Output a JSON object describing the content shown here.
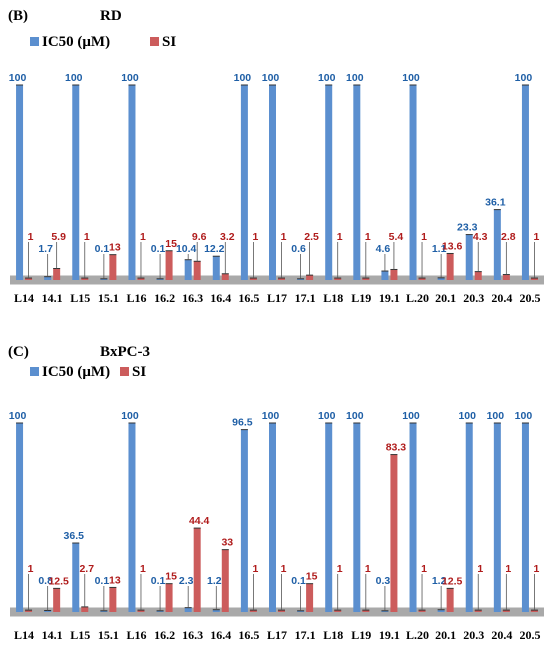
{
  "colors": {
    "ic50": "#5b8fcf",
    "si": "#cc5c5c",
    "ic50_text": "#1f5fa6",
    "si_text": "#b01c1c",
    "floor": "#a9a9a9"
  },
  "legend": {
    "ic50": "IC50  (μM)",
    "si": "SI"
  },
  "chart_data": [
    {
      "type": "bar",
      "panel": "(B)",
      "title": "RD",
      "categories": [
        "L14",
        "14.1",
        "L15",
        "15.1",
        "L16",
        "16.2",
        "16.3",
        "16.4",
        "16.5",
        "L17",
        "17.1",
        "L18",
        "L19",
        "19.1",
        "L.20",
        "20.1",
        "20.3",
        "20.4",
        "20.5"
      ],
      "series": [
        {
          "name": "IC50  (μM)",
          "values": [
            100,
            1.7,
            100,
            0.1,
            100,
            0.1,
            10.4,
            12.2,
            100,
            100,
            0.6,
            100,
            100,
            4.6,
            100,
            1.1,
            23.3,
            36.1,
            100
          ],
          "labels": [
            "100",
            "1.7",
            "100",
            "0.1",
            "100",
            "0.1",
            "10.4",
            "12.2",
            "100",
            "100",
            "0.6",
            "100",
            "100",
            "4.6",
            "100",
            "1.1",
            "23.3",
            "36.1",
            "100"
          ]
        },
        {
          "name": "SI",
          "values": [
            1,
            5.9,
            1,
            13,
            1,
            15,
            9.6,
            3.2,
            1,
            1,
            2.5,
            1,
            1,
            5.4,
            1,
            13.6,
            4.3,
            2.8,
            1
          ],
          "labels": [
            "1",
            "5.9",
            "1",
            "13",
            "1",
            "15",
            "9.6",
            "3.2",
            "1",
            "1",
            "2.5",
            "1",
            "1",
            "5.4",
            "1",
            "13.6",
            "4.3",
            "2.8",
            "1"
          ]
        }
      ],
      "ylim": [
        0,
        100
      ]
    },
    {
      "type": "bar",
      "panel": "(C)",
      "title": "BxPC-3",
      "categories": [
        "L14",
        "14.1",
        "L15",
        "15.1",
        "L16",
        "16.2",
        "16.3",
        "16.4",
        "16.5",
        "L17",
        "17.1",
        "L18",
        "L19",
        "19.1",
        "L.20",
        "20.1",
        "20.3",
        "20.4",
        "20.5"
      ],
      "series": [
        {
          "name": "IC50  (μM)",
          "values": [
            100,
            0.8,
            36.5,
            0.1,
            100,
            0.1,
            2.3,
            1.2,
            96.5,
            100,
            0.1,
            100,
            100,
            0.3,
            100,
            1.2,
            100,
            100,
            100
          ],
          "labels": [
            "100",
            "0.8",
            "36.5",
            "0.1",
            "100",
            "0.1",
            "2.3",
            "1.2",
            "96.5",
            "100",
            "0.1",
            "100",
            "100",
            "0.3",
            "100",
            "1.2",
            "100",
            "100",
            "100"
          ]
        },
        {
          "name": "SI",
          "values": [
            1,
            12.5,
            2.7,
            13,
            1,
            15,
            44.4,
            33,
            1,
            1,
            15,
            1,
            1,
            83.3,
            1,
            12.5,
            1,
            1,
            1
          ],
          "labels": [
            "1",
            "12.5",
            "2.7",
            "13",
            "1",
            "15",
            "44.4",
            "33",
            "1",
            "1",
            "15",
            "1",
            "1",
            "83.3",
            "1",
            "12.5",
            "1",
            "1",
            "1"
          ]
        }
      ],
      "ylim": [
        0,
        100
      ]
    }
  ]
}
